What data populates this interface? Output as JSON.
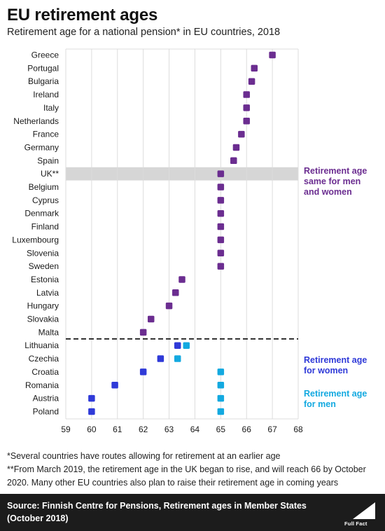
{
  "title": "EU retirement ages",
  "subtitle": "Retirement age for a national pension* in EU countries, 2018",
  "colors": {
    "same": "#6b2d90",
    "women": "#2f3ad8",
    "men": "#13a9e0",
    "highlight_band": "#d6d6d6",
    "grid": "#dcdcdc",
    "background": "#ffffff",
    "footer_bg": "#1c1c1c"
  },
  "chart_data": {
    "type": "scatter",
    "xlim": [
      59,
      68
    ],
    "xticks": [
      "59",
      "60",
      "61",
      "62",
      "63",
      "64",
      "65",
      "66",
      "67",
      "68"
    ],
    "grid": true,
    "highlighted_category": "UK**",
    "divider_after": "Malta",
    "categories": [
      "Greece",
      "Portugal",
      "Bulgaria",
      "Ireland",
      "Italy",
      "Netherlands",
      "France",
      "Germany",
      "Spain",
      "UK**",
      "Belgium",
      "Cyprus",
      "Denmark",
      "Finland",
      "Luxembourg",
      "Slovenia",
      "Sweden",
      "Estonia",
      "Latvia",
      "Hungary",
      "Slovakia",
      "Malta",
      "Lithuania",
      "Czechia",
      "Croatia",
      "Romania",
      "Austria",
      "Poland"
    ],
    "series": [
      {
        "name": "Retirement age same for men and women",
        "key": "same",
        "values": [
          67,
          66.3,
          66.2,
          66,
          66,
          66,
          65.8,
          65.6,
          65.5,
          65,
          65,
          65,
          65,
          65,
          65,
          65,
          65,
          63.5,
          63.25,
          63,
          62.3,
          62,
          null,
          null,
          null,
          null,
          null,
          null
        ]
      },
      {
        "name": "Retirement age for women",
        "key": "women",
        "values": [
          null,
          null,
          null,
          null,
          null,
          null,
          null,
          null,
          null,
          null,
          null,
          null,
          null,
          null,
          null,
          null,
          null,
          null,
          null,
          null,
          null,
          null,
          63.33,
          62.67,
          62,
          60.9,
          60,
          60
        ]
      },
      {
        "name": "Retirement age for men",
        "key": "men",
        "values": [
          null,
          null,
          null,
          null,
          null,
          null,
          null,
          null,
          null,
          null,
          null,
          null,
          null,
          null,
          null,
          null,
          null,
          null,
          null,
          null,
          null,
          null,
          63.67,
          63.33,
          65,
          65,
          65,
          65
        ]
      }
    ],
    "legend": [
      {
        "key": "same",
        "lines": [
          "Retirement age",
          "same for men",
          "and women"
        ]
      },
      {
        "key": "women",
        "lines": [
          "Retirement age",
          "for women"
        ]
      },
      {
        "key": "men",
        "lines": [
          "Retirement age",
          "for men"
        ]
      }
    ]
  },
  "footnotes": [
    "*Several countries have routes allowing for retirement at an earlier age",
    "**From March 2019, the retirement age in the UK began to rise, and will reach 66 by October 2020. Many other EU countries also plan to raise their retirement age in coming years"
  ],
  "source": {
    "label": "Source:",
    "text": " Finnish Centre for Pensions, Retirement ages in Member States (October 2018)"
  },
  "logo_text": "Full Fact"
}
